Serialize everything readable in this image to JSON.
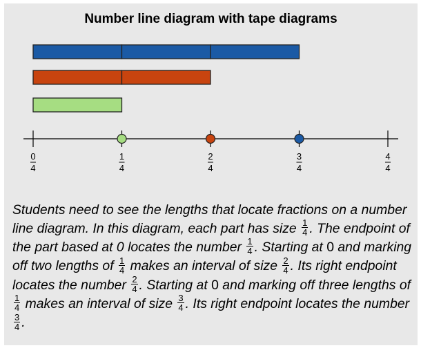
{
  "title": "Number line diagram with tape diagrams",
  "colors": {
    "panel_bg": "#e8e8e8",
    "blue": "#1b5aa5",
    "orange": "#c8440f",
    "green": "#a6dd82",
    "outline": "#222222"
  },
  "number_line": {
    "ticks": [
      {
        "num": "0",
        "den": "4"
      },
      {
        "num": "1",
        "den": "4"
      },
      {
        "num": "2",
        "den": "4"
      },
      {
        "num": "3",
        "den": "4"
      },
      {
        "num": "4",
        "den": "4"
      }
    ],
    "points": [
      {
        "value_quarters": 1,
        "color": "green"
      },
      {
        "value_quarters": 2,
        "color": "orange"
      },
      {
        "value_quarters": 3,
        "color": "blue"
      }
    ]
  },
  "tapes": [
    {
      "color": "blue",
      "parts": 3
    },
    {
      "color": "orange",
      "parts": 2
    },
    {
      "color": "green",
      "parts": 1
    }
  ],
  "caption": {
    "s1": "Students need to see the lengths that locate fractions on a number line diagram. In this diagram, each part has size",
    "f1_num": "1",
    "f1_den": "4",
    "s2": ". The endpoint of the part based at 0 locates the number",
    "f2_num": "1",
    "f2_den": "4",
    "s3": ". Starting at",
    "z1": "0",
    "s4": "and marking off two lengths of",
    "f3_num": "1",
    "f3_den": "4",
    "s5": "makes an interval of size",
    "f4_num": "2",
    "f4_den": "4",
    "s6": ". Its right endpoint locates the number",
    "f5_num": "2",
    "f5_den": "4",
    "s7": ". Starting at",
    "z2": "0",
    "s8": "and marking off three lengths of",
    "f6_num": "1",
    "f6_den": "4",
    "s9": "makes an interval of size",
    "f7_num": "3",
    "f7_den": "4",
    "s10": ". Its right endpoint locates the number",
    "f8_num": "3",
    "f8_den": "4",
    "s11": "."
  }
}
